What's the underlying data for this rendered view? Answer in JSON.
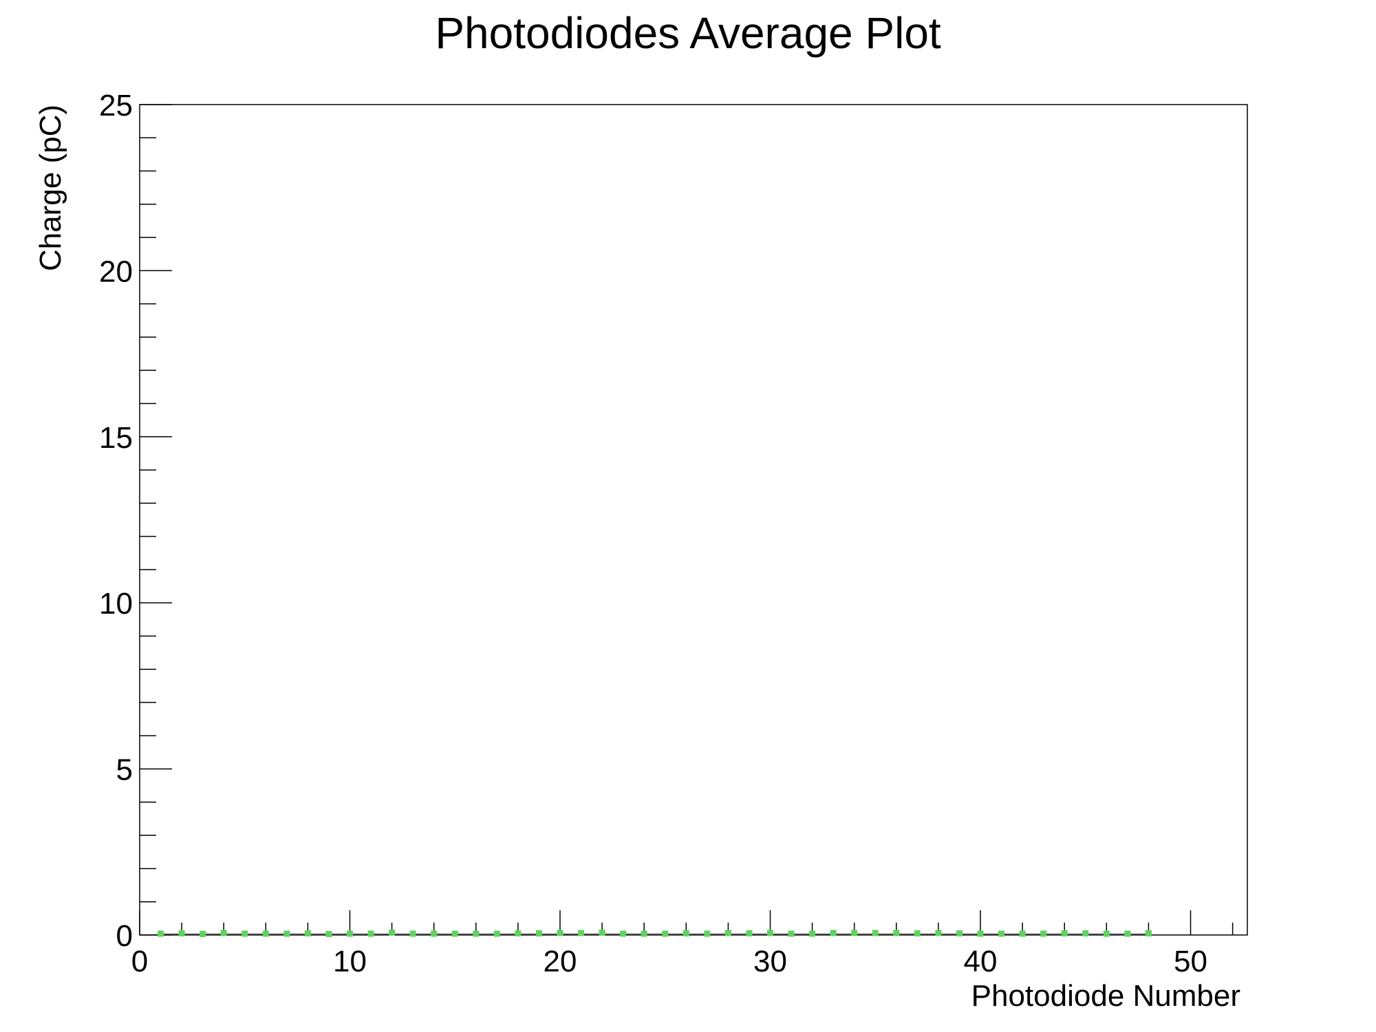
{
  "chart_data": {
    "type": "scatter",
    "title": "Photodiodes Average Plot",
    "xlabel": "Photodiode Number",
    "ylabel": "Charge (pC)",
    "xlim": [
      0,
      52.7
    ],
    "ylim": [
      0,
      25
    ],
    "x_ticks": [
      0,
      10,
      20,
      30,
      40,
      50
    ],
    "y_ticks": [
      0,
      5,
      10,
      15,
      20,
      25
    ],
    "x_tick_labels": [
      "0",
      "10",
      "20",
      "30",
      "40",
      "50"
    ],
    "y_tick_labels": [
      "0",
      "5",
      "10",
      "15",
      "20",
      "25"
    ],
    "grid": false,
    "marker_color": "#5fd35f",
    "frame_color": "#000000",
    "x": [
      1,
      2,
      3,
      4,
      5,
      6,
      7,
      8,
      9,
      10,
      11,
      12,
      13,
      14,
      15,
      16,
      17,
      18,
      19,
      20,
      21,
      22,
      23,
      24,
      25,
      26,
      27,
      28,
      29,
      30,
      31,
      32,
      33,
      34,
      35,
      36,
      37,
      38,
      39,
      40,
      41,
      42,
      43,
      44,
      45,
      46,
      47,
      48
    ],
    "y": [
      0.04,
      0.05,
      0.03,
      0.06,
      0.04,
      0.04,
      0.04,
      0.05,
      0.03,
      0.04,
      0.04,
      0.07,
      0.04,
      0.04,
      0.04,
      0.04,
      0.04,
      0.05,
      0.05,
      0.06,
      0.06,
      0.07,
      0.04,
      0.04,
      0.04,
      0.05,
      0.04,
      0.06,
      0.05,
      0.06,
      0.04,
      0.04,
      0.06,
      0.06,
      0.06,
      0.06,
      0.05,
      0.06,
      0.05,
      0.04,
      0.04,
      0.04,
      0.04,
      0.05,
      0.05,
      0.04,
      0.04,
      0.05
    ]
  }
}
